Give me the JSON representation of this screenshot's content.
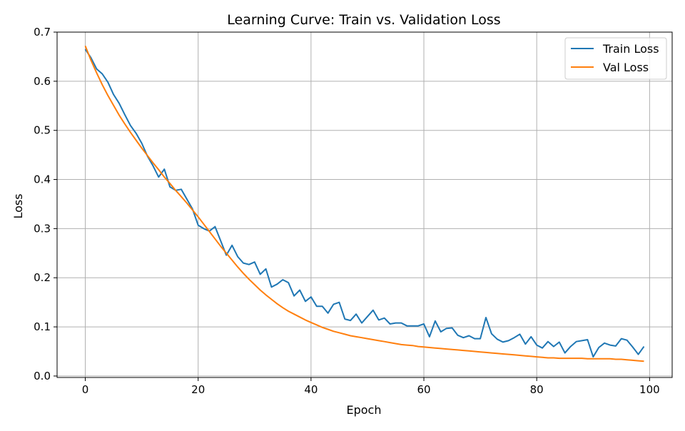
{
  "chart_data": {
    "type": "line",
    "title": "Learning Curve: Train vs. Validation Loss",
    "xlabel": "Epoch",
    "ylabel": "Loss",
    "xlim": [
      -5,
      104
    ],
    "ylim": [
      -0.003,
      0.7
    ],
    "xticks": [
      0,
      20,
      40,
      60,
      80,
      100
    ],
    "yticks": [
      0.0,
      0.1,
      0.2,
      0.3,
      0.4,
      0.5,
      0.6,
      0.7
    ],
    "xtick_labels": [
      "0",
      "20",
      "40",
      "60",
      "80",
      "100"
    ],
    "ytick_labels": [
      "0.0",
      "0.1",
      "0.2",
      "0.3",
      "0.4",
      "0.5",
      "0.6",
      "0.7"
    ],
    "grid": true,
    "legend_position": "top-right",
    "series": [
      {
        "name": "Train Loss",
        "color": "#1f77b4",
        "x": [
          0,
          1,
          2,
          3,
          4,
          5,
          6,
          7,
          8,
          9,
          10,
          11,
          12,
          13,
          14,
          15,
          16,
          17,
          18,
          19,
          20,
          21,
          22,
          23,
          24,
          25,
          26,
          27,
          28,
          29,
          30,
          31,
          32,
          33,
          34,
          35,
          36,
          37,
          38,
          39,
          40,
          41,
          42,
          43,
          44,
          45,
          46,
          47,
          48,
          49,
          50,
          51,
          52,
          53,
          54,
          55,
          56,
          57,
          58,
          59,
          60,
          61,
          62,
          63,
          64,
          65,
          66,
          67,
          68,
          69,
          70,
          71,
          72,
          73,
          74,
          75,
          76,
          77,
          78,
          79,
          80,
          81,
          82,
          83,
          84,
          85,
          86,
          87,
          88,
          89,
          90,
          91,
          92,
          93,
          94,
          95,
          96,
          97,
          98,
          99
        ],
        "values": [
          0.665,
          0.648,
          0.625,
          0.615,
          0.598,
          0.573,
          0.555,
          0.532,
          0.51,
          0.494,
          0.474,
          0.448,
          0.428,
          0.405,
          0.421,
          0.385,
          0.378,
          0.38,
          0.36,
          0.34,
          0.307,
          0.3,
          0.295,
          0.304,
          0.275,
          0.246,
          0.266,
          0.243,
          0.23,
          0.227,
          0.232,
          0.207,
          0.218,
          0.181,
          0.187,
          0.196,
          0.19,
          0.163,
          0.175,
          0.152,
          0.161,
          0.142,
          0.142,
          0.128,
          0.146,
          0.15,
          0.116,
          0.113,
          0.126,
          0.108,
          0.121,
          0.134,
          0.114,
          0.118,
          0.106,
          0.108,
          0.108,
          0.102,
          0.102,
          0.102,
          0.106,
          0.08,
          0.112,
          0.09,
          0.097,
          0.098,
          0.083,
          0.078,
          0.082,
          0.076,
          0.076,
          0.119,
          0.086,
          0.075,
          0.069,
          0.072,
          0.078,
          0.085,
          0.065,
          0.08,
          0.063,
          0.057,
          0.07,
          0.06,
          0.069,
          0.047,
          0.06,
          0.07,
          0.072,
          0.074,
          0.039,
          0.058,
          0.067,
          0.063,
          0.061,
          0.076,
          0.073,
          0.059,
          0.044,
          0.06
        ]
      },
      {
        "name": "Val Loss",
        "color": "#ff7f0e",
        "x": [
          0,
          1,
          2,
          3,
          4,
          5,
          6,
          7,
          8,
          9,
          10,
          11,
          12,
          13,
          14,
          15,
          16,
          17,
          18,
          19,
          20,
          21,
          22,
          23,
          24,
          25,
          26,
          27,
          28,
          29,
          30,
          31,
          32,
          33,
          34,
          35,
          36,
          37,
          38,
          39,
          40,
          41,
          42,
          43,
          44,
          45,
          46,
          47,
          48,
          49,
          50,
          51,
          52,
          53,
          54,
          55,
          56,
          57,
          58,
          59,
          60,
          61,
          62,
          63,
          64,
          65,
          66,
          67,
          68,
          69,
          70,
          71,
          72,
          73,
          74,
          75,
          76,
          77,
          78,
          79,
          80,
          81,
          82,
          83,
          84,
          85,
          86,
          87,
          88,
          89,
          90,
          91,
          92,
          93,
          94,
          95,
          96,
          97,
          98,
          99
        ],
        "values": [
          0.672,
          0.643,
          0.617,
          0.593,
          0.571,
          0.551,
          0.531,
          0.513,
          0.496,
          0.48,
          0.464,
          0.449,
          0.434,
          0.42,
          0.405,
          0.392,
          0.378,
          0.365,
          0.352,
          0.338,
          0.324,
          0.309,
          0.294,
          0.279,
          0.264,
          0.25,
          0.236,
          0.222,
          0.209,
          0.197,
          0.186,
          0.175,
          0.165,
          0.156,
          0.147,
          0.139,
          0.132,
          0.126,
          0.12,
          0.114,
          0.109,
          0.104,
          0.099,
          0.095,
          0.091,
          0.088,
          0.085,
          0.082,
          0.08,
          0.078,
          0.076,
          0.074,
          0.072,
          0.07,
          0.068,
          0.066,
          0.064,
          0.063,
          0.062,
          0.06,
          0.059,
          0.058,
          0.057,
          0.056,
          0.055,
          0.054,
          0.053,
          0.052,
          0.051,
          0.05,
          0.049,
          0.048,
          0.047,
          0.046,
          0.045,
          0.044,
          0.043,
          0.042,
          0.041,
          0.04,
          0.039,
          0.038,
          0.037,
          0.037,
          0.036,
          0.036,
          0.036,
          0.036,
          0.036,
          0.035,
          0.035,
          0.035,
          0.035,
          0.035,
          0.034,
          0.034,
          0.033,
          0.032,
          0.031,
          0.03
        ]
      }
    ]
  }
}
